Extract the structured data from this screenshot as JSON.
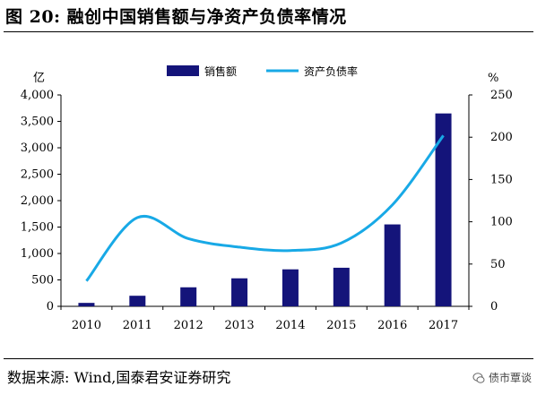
{
  "figure": {
    "title": "图 20:  融创中国销售额与净资产负债率情况",
    "source": "数据来源:  Wind,国泰君安证券研究",
    "watermark": "债市覃谈"
  },
  "chart_data": {
    "type": "bar",
    "categories": [
      "2010",
      "2011",
      "2012",
      "2013",
      "2014",
      "2015",
      "2016",
      "2017"
    ],
    "series": [
      {
        "name": "销售额",
        "type": "bar",
        "axis": "left",
        "color": "#14147a",
        "values": [
          65,
          200,
          360,
          530,
          700,
          730,
          1550,
          3650
        ]
      },
      {
        "name": "资产负债率",
        "type": "line",
        "axis": "right",
        "color": "#18a9e6",
        "values": [
          30,
          105,
          80,
          70,
          66,
          75,
          120,
          202
        ]
      }
    ],
    "y_left": {
      "unit": "亿",
      "ylim": [
        0,
        4000
      ],
      "ticks": [
        "0",
        "500",
        "1,000",
        "1,500",
        "2,000",
        "2,500",
        "3,000",
        "3,500",
        "4,000"
      ]
    },
    "y_right": {
      "unit": "%",
      "ylim": [
        0,
        250
      ],
      "ticks": [
        "0",
        "50",
        "100",
        "150",
        "200",
        "250"
      ]
    },
    "legend_position": "top",
    "grid": false
  }
}
